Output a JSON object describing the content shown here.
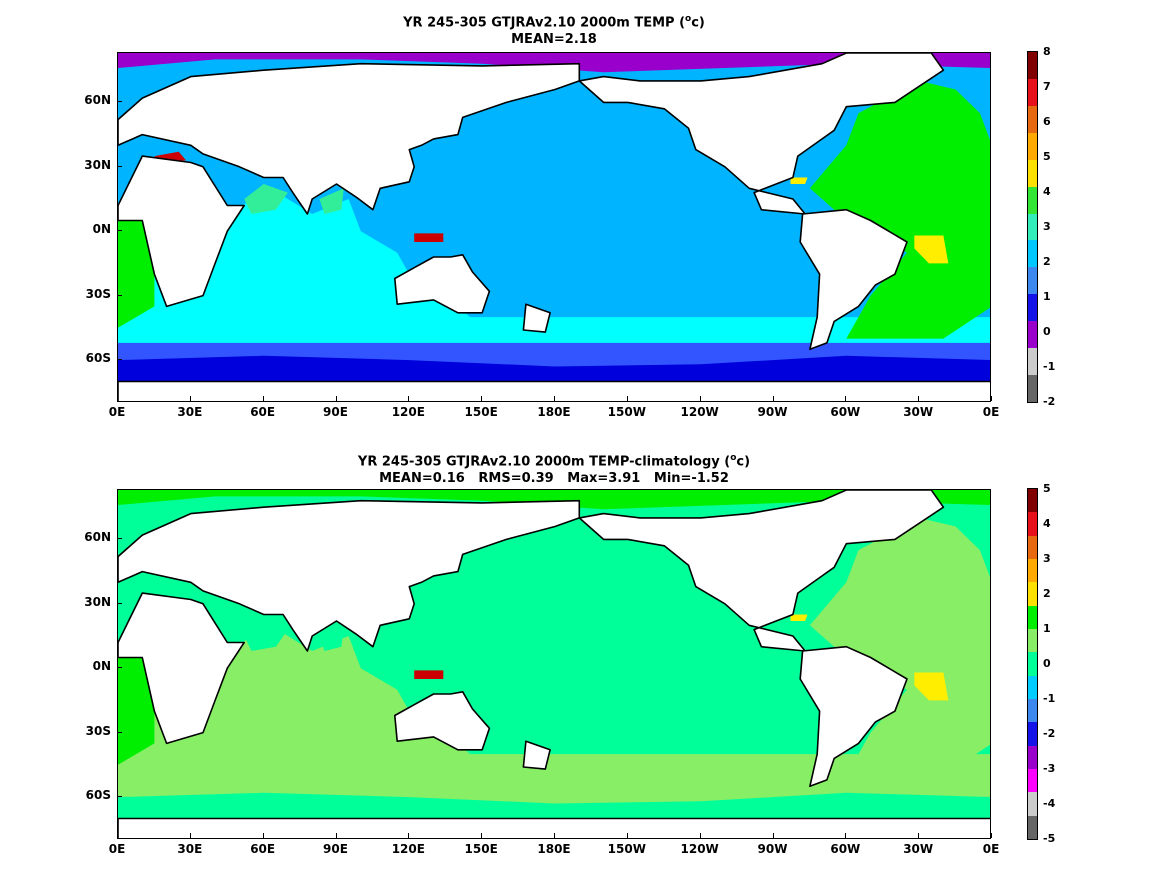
{
  "panels": [
    {
      "title_line1": "YR 245-305 GTJRAv2.10 2000m TEMP (",
      "title_unit_sup": "o",
      "title_unit_tail": "c)",
      "title_line2": "MEAN=2.18",
      "colorbar_labels": [
        "8",
        "7",
        "6",
        "5",
        "4",
        "3",
        "2",
        "1",
        "0",
        "-1",
        "-2"
      ],
      "colorbar_colors": [
        "#800000",
        "#e8101a",
        "#e86a10",
        "#ffaa00",
        "#ffe000",
        "#33e633",
        "#33eebb",
        "#00c8ff",
        "#3c88ee",
        "#1414e8",
        "#9900cc",
        "#cccccc",
        "#666666"
      ],
      "fill_colors": {
        "pacific": "#00b4ff",
        "indian": "#00ffff",
        "southern": "#00ffff",
        "antarctic": "#3355ff",
        "antarctic_deep": "#0000dd",
        "atlantic": "#00ee00",
        "atlantic_south": "#00ee00",
        "arctic": "#9900cc",
        "arabian": "#33ee99",
        "hotspot": "#ffee00",
        "med": "#cc0000",
        "indo": "#cc0000"
      }
    },
    {
      "title_line1": "YR 245-305 GTJRAv2.10 2000m TEMP-climatology (",
      "title_unit_sup": "o",
      "title_unit_tail": "c)",
      "title_line2": "MEAN=0.16   RMS=0.39   Max=3.91   Min=-1.52",
      "colorbar_labels": [
        "5",
        "4",
        "3",
        "2",
        "1",
        "0",
        "-1",
        "-2",
        "-3",
        "-4",
        "-5"
      ],
      "colorbar_colors": [
        "#800000",
        "#e8101a",
        "#e86a10",
        "#ffaa00",
        "#ffe000",
        "#00ee00",
        "#88ee66",
        "#00ff99",
        "#00ccff",
        "#3c88ee",
        "#1414e8",
        "#9900cc",
        "#ff00ff",
        "#cccccc",
        "#666666"
      ],
      "fill_colors": {
        "pacific": "#00ff99",
        "indian": "#88ee66",
        "southern": "#88ee66",
        "antarctic": "#88ee66",
        "antarctic_deep": "#00ff99",
        "atlantic": "#88ee66",
        "atlantic_south": "#00ee00",
        "arctic": "#00ee00",
        "arabian": "#00ff99",
        "hotspot": "#ffee00",
        "med": "#00ff99",
        "indo": "#cc0000"
      }
    }
  ],
  "lat_labels": [
    "60N",
    "30N",
    "0N",
    "30S",
    "60S"
  ],
  "lon_labels": [
    "0E",
    "30E",
    "60E",
    "90E",
    "120E",
    "150E",
    "180E",
    "150W",
    "120W",
    "90W",
    "60W",
    "30W",
    "0E"
  ],
  "land_color": "#ffffff",
  "coast_color": "#000000"
}
